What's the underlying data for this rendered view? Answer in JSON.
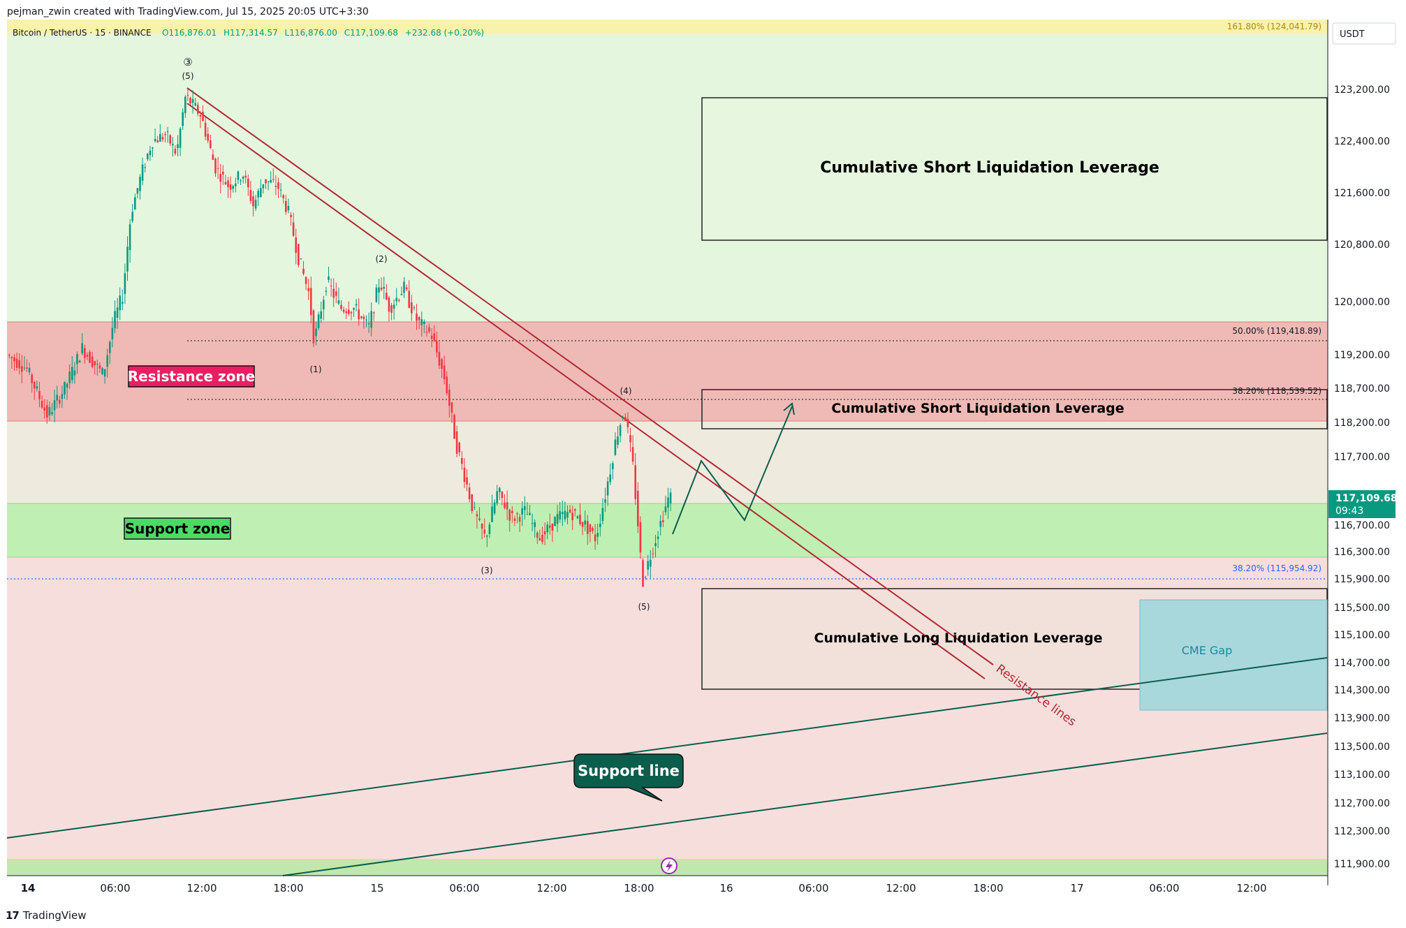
{
  "header": {
    "credit": "pejman_zwin created with TradingView.com, Jul 15, 2025 20:05 UTC+3:30"
  },
  "legend": {
    "symbol": "Bitcoin / TetherUS · 15 · BINANCE",
    "open": "O116,876.01",
    "high": "H117,314.57",
    "low": "L116,876.00",
    "close": "C117,109.68",
    "change": "+232.68 (+0.20%)"
  },
  "footer": {
    "brand": "TradingView",
    "logo": "17"
  },
  "colors": {
    "up": "#089981",
    "down": "#f23645",
    "resistance_line": "#b22833",
    "support_line": "#0b5e4c",
    "resistance_zone": "#f0b9b3",
    "support_zone": "#bff0b2",
    "cme_gap": "#a9d8dc",
    "price_badge": "#089981"
  },
  "chart_data": {
    "type": "candlestick",
    "symbol": "Bitcoin / TetherUS",
    "interval": "15",
    "exchange": "BINANCE",
    "currency": "USDT",
    "last_price": "117,109.68",
    "countdown": "09:43",
    "y_ticks": [
      "123,200.00",
      "122,400.00",
      "121,600.00",
      "120,800.00",
      "120,000.00",
      "119,200.00",
      "118,700.00",
      "118,200.00",
      "117,700.00",
      "116,700.00",
      "116,300.00",
      "115,900.00",
      "115,500.00",
      "115,100.00",
      "114,700.00",
      "114,300.00",
      "113,900.00",
      "113,500.00",
      "113,100.00",
      "112,700.00",
      "112,300.00",
      "111,900.00"
    ],
    "x_ticks": [
      "14",
      "06:00",
      "12:00",
      "18:00",
      "15",
      "06:00",
      "12:00",
      "18:00",
      "16",
      "06:00",
      "12:00",
      "18:00",
      "17",
      "06:00",
      "12:00"
    ],
    "ohlc_key_points": [
      {
        "time": "Jul 14 00:00",
        "price": 119200
      },
      {
        "time": "Jul 14 03:00",
        "price": 118300,
        "note": "low"
      },
      {
        "time": "Jul 14 07:00",
        "price": 120000
      },
      {
        "time": "Jul 14 09:00",
        "price": 122400
      },
      {
        "time": "Jul 14 11:00",
        "price": 123100,
        "note": "wave (5) high"
      },
      {
        "time": "Jul 14 19:30",
        "price": 119400,
        "note": "wave (1)"
      },
      {
        "time": "Jul 15 01:30",
        "price": 120300,
        "note": "wave (2)"
      },
      {
        "time": "Jul 15 07:00",
        "price": 116300,
        "note": "wave (3)"
      },
      {
        "time": "Jul 15 17:30",
        "price": 118400,
        "note": "wave (4)"
      },
      {
        "time": "Jul 15 18:00",
        "price": 115850,
        "note": "wave (5)"
      },
      {
        "time": "Jul 15 20:00",
        "price": 117109.68,
        "note": "last"
      }
    ],
    "fib_levels": [
      {
        "label": "161.80% (124,041.79)",
        "price": 124041.79
      },
      {
        "label": "50.00% (119,418.89)",
        "price": 119418.89
      },
      {
        "label": "38.20% (118,539.52)",
        "price": 118539.52
      },
      {
        "label": "38.20% (115,954.92)",
        "price": 115954.92
      }
    ],
    "zones": [
      {
        "label": "Resistance zone",
        "from": 118180,
        "to": 119700
      },
      {
        "label": "Support zone",
        "from": 116250,
        "to": 117050
      }
    ],
    "boxes": [
      {
        "label": "Cumulative Short Liquidation Leverage",
        "from": 120850,
        "to": 123050
      },
      {
        "label": "Cumulative Short Liquidation Leverage",
        "from": 118150,
        "to": 118700
      },
      {
        "label": "Cumulative Long Liquidation Leverage",
        "from": 114300,
        "to": 115800
      },
      {
        "label": "CME Gap",
        "from": 113950,
        "to": 115650
      }
    ],
    "wave_labels": [
      "③",
      "(5)",
      "(1)",
      "(2)",
      "(3)",
      "(4)",
      "(5)"
    ],
    "annotations": {
      "resistance_lines": "Resistance lines",
      "support_line": "Support line"
    }
  }
}
